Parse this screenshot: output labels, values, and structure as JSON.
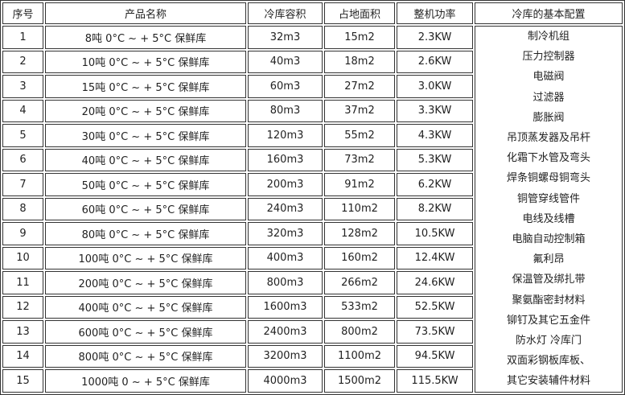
{
  "headers": [
    "序号",
    "产品名称",
    "冷库容积",
    "占地面积",
    "整机功率",
    "冷库的基本配置"
  ],
  "rows": [
    {
      "no": "1",
      "name": "8吨 0°C ~ + 5°C 保鲜库",
      "volume": "32m3",
      "area": "15m2",
      "power": "2.3KW"
    },
    {
      "no": "2",
      "name": "10吨 0°C ~ + 5°C 保鲜库",
      "volume": "40m3",
      "area": "18m2",
      "power": "2.6KW"
    },
    {
      "no": "3",
      "name": "15吨 0°C ~ + 5°C 保鲜库",
      "volume": "60m3",
      "area": "27m2",
      "power": "3.0KW"
    },
    {
      "no": "4",
      "name": "20吨 0°C ~ + 5°C 保鲜库",
      "volume": "80m3",
      "area": "37m2",
      "power": "3.3KW"
    },
    {
      "no": "5",
      "name": "30吨 0°C ~ + 5°C 保鲜库",
      "volume": "120m3",
      "area": "55m2",
      "power": "4.3KW"
    },
    {
      "no": "6",
      "name": "40吨 0°C ~ + 5°C 保鲜库",
      "volume": "160m3",
      "area": "73m2",
      "power": "5.3KW"
    },
    {
      "no": "7",
      "name": "50吨 0°C ~ + 5°C 保鲜库",
      "volume": "200m3",
      "area": "91m2",
      "power": "6.2KW"
    },
    {
      "no": "8",
      "name": "60吨 0°C ~ + 5°C 保鲜库",
      "volume": "240m3",
      "area": "110m2",
      "power": "8.2KW"
    },
    {
      "no": "9",
      "name": "80吨 0°C ~ + 5°C 保鲜库",
      "volume": "320m3",
      "area": "128m2",
      "power": "10.5KW"
    },
    {
      "no": "10",
      "name": "100吨 0°C ~ + 5°C 保鲜库",
      "volume": "400m3",
      "area": "160m2",
      "power": "12.4KW"
    },
    {
      "no": "11",
      "name": "200吨 0°C ~ + 5°C 保鲜库",
      "volume": "800m3",
      "area": "266m2",
      "power": "24.6KW"
    },
    {
      "no": "12",
      "name": "400吨 0°C ~ + 5°C 保鲜库",
      "volume": "1600m3",
      "area": "533m2",
      "power": "52.5KW"
    },
    {
      "no": "13",
      "name": "600吨 0°C ~ + 5°C 保鲜库",
      "volume": "2400m3",
      "area": "800m2",
      "power": "73.5KW"
    },
    {
      "no": "14",
      "name": "800吨 0°C ~ + 5°C 保鲜库",
      "volume": "3200m3",
      "area": "1100m2",
      "power": "94.5KW"
    },
    {
      "no": "15",
      "name": "1000吨 0 ~ + 5°C 保鲜库",
      "volume": "4000m3",
      "area": "1500m2",
      "power": "115.5KW"
    }
  ],
  "config": [
    "制冷机组",
    "压力控制器",
    "电磁阀",
    "过滤器",
    "膨胀阀",
    "吊顶蒸发器及吊杆",
    "化霜下水管及弯头",
    "焊条铜螺母铜弯头",
    "铜管穿线管件",
    "电线及线槽",
    "电脑自动控制箱",
    "氟利昂",
    "保温管及绑扎带",
    "聚氨酯密封材料",
    "铆钉及其它五金件",
    "防水灯 冷库门",
    "双面彩钢板库板、",
    "其它安装辅件材料"
  ]
}
